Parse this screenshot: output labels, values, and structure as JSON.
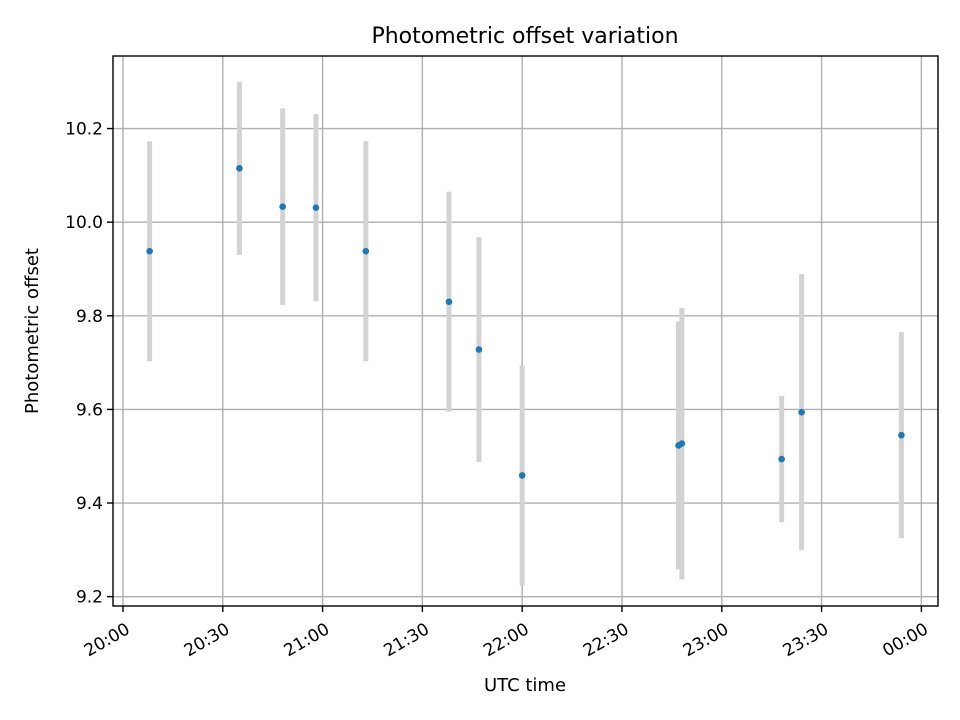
{
  "chart_data": {
    "type": "scatter",
    "title": "Photometric offset variation",
    "xlabel": "UTC time",
    "ylabel": "Photometric offset",
    "xlim": [
      "19:57",
      "00:05"
    ],
    "ylim": [
      9.18,
      10.355
    ],
    "x_ticks": [
      "20:00",
      "20:30",
      "21:00",
      "21:30",
      "22:00",
      "22:30",
      "23:00",
      "23:30",
      "00:00"
    ],
    "y_ticks": [
      9.2,
      9.4,
      9.6,
      9.8,
      10.0,
      10.2
    ],
    "grid": true,
    "point_color": "#1f77b4",
    "errorbar_color": "#d3d3d3",
    "series": [
      {
        "x": [
          "20:08",
          "20:35",
          "20:48",
          "20:58",
          "21:13",
          "21:38",
          "21:47",
          "22:00",
          "22:47",
          "22:48",
          "23:18",
          "23:24",
          "23:54"
        ],
        "y": [
          9.938,
          10.115,
          10.033,
          10.031,
          9.938,
          9.83,
          9.728,
          9.459,
          9.523,
          9.527,
          9.494,
          9.594,
          9.545
        ],
        "yerr": [
          0.235,
          0.185,
          0.21,
          0.2,
          0.235,
          0.235,
          0.24,
          0.235,
          0.265,
          0.29,
          0.135,
          0.295,
          0.22
        ]
      }
    ]
  }
}
